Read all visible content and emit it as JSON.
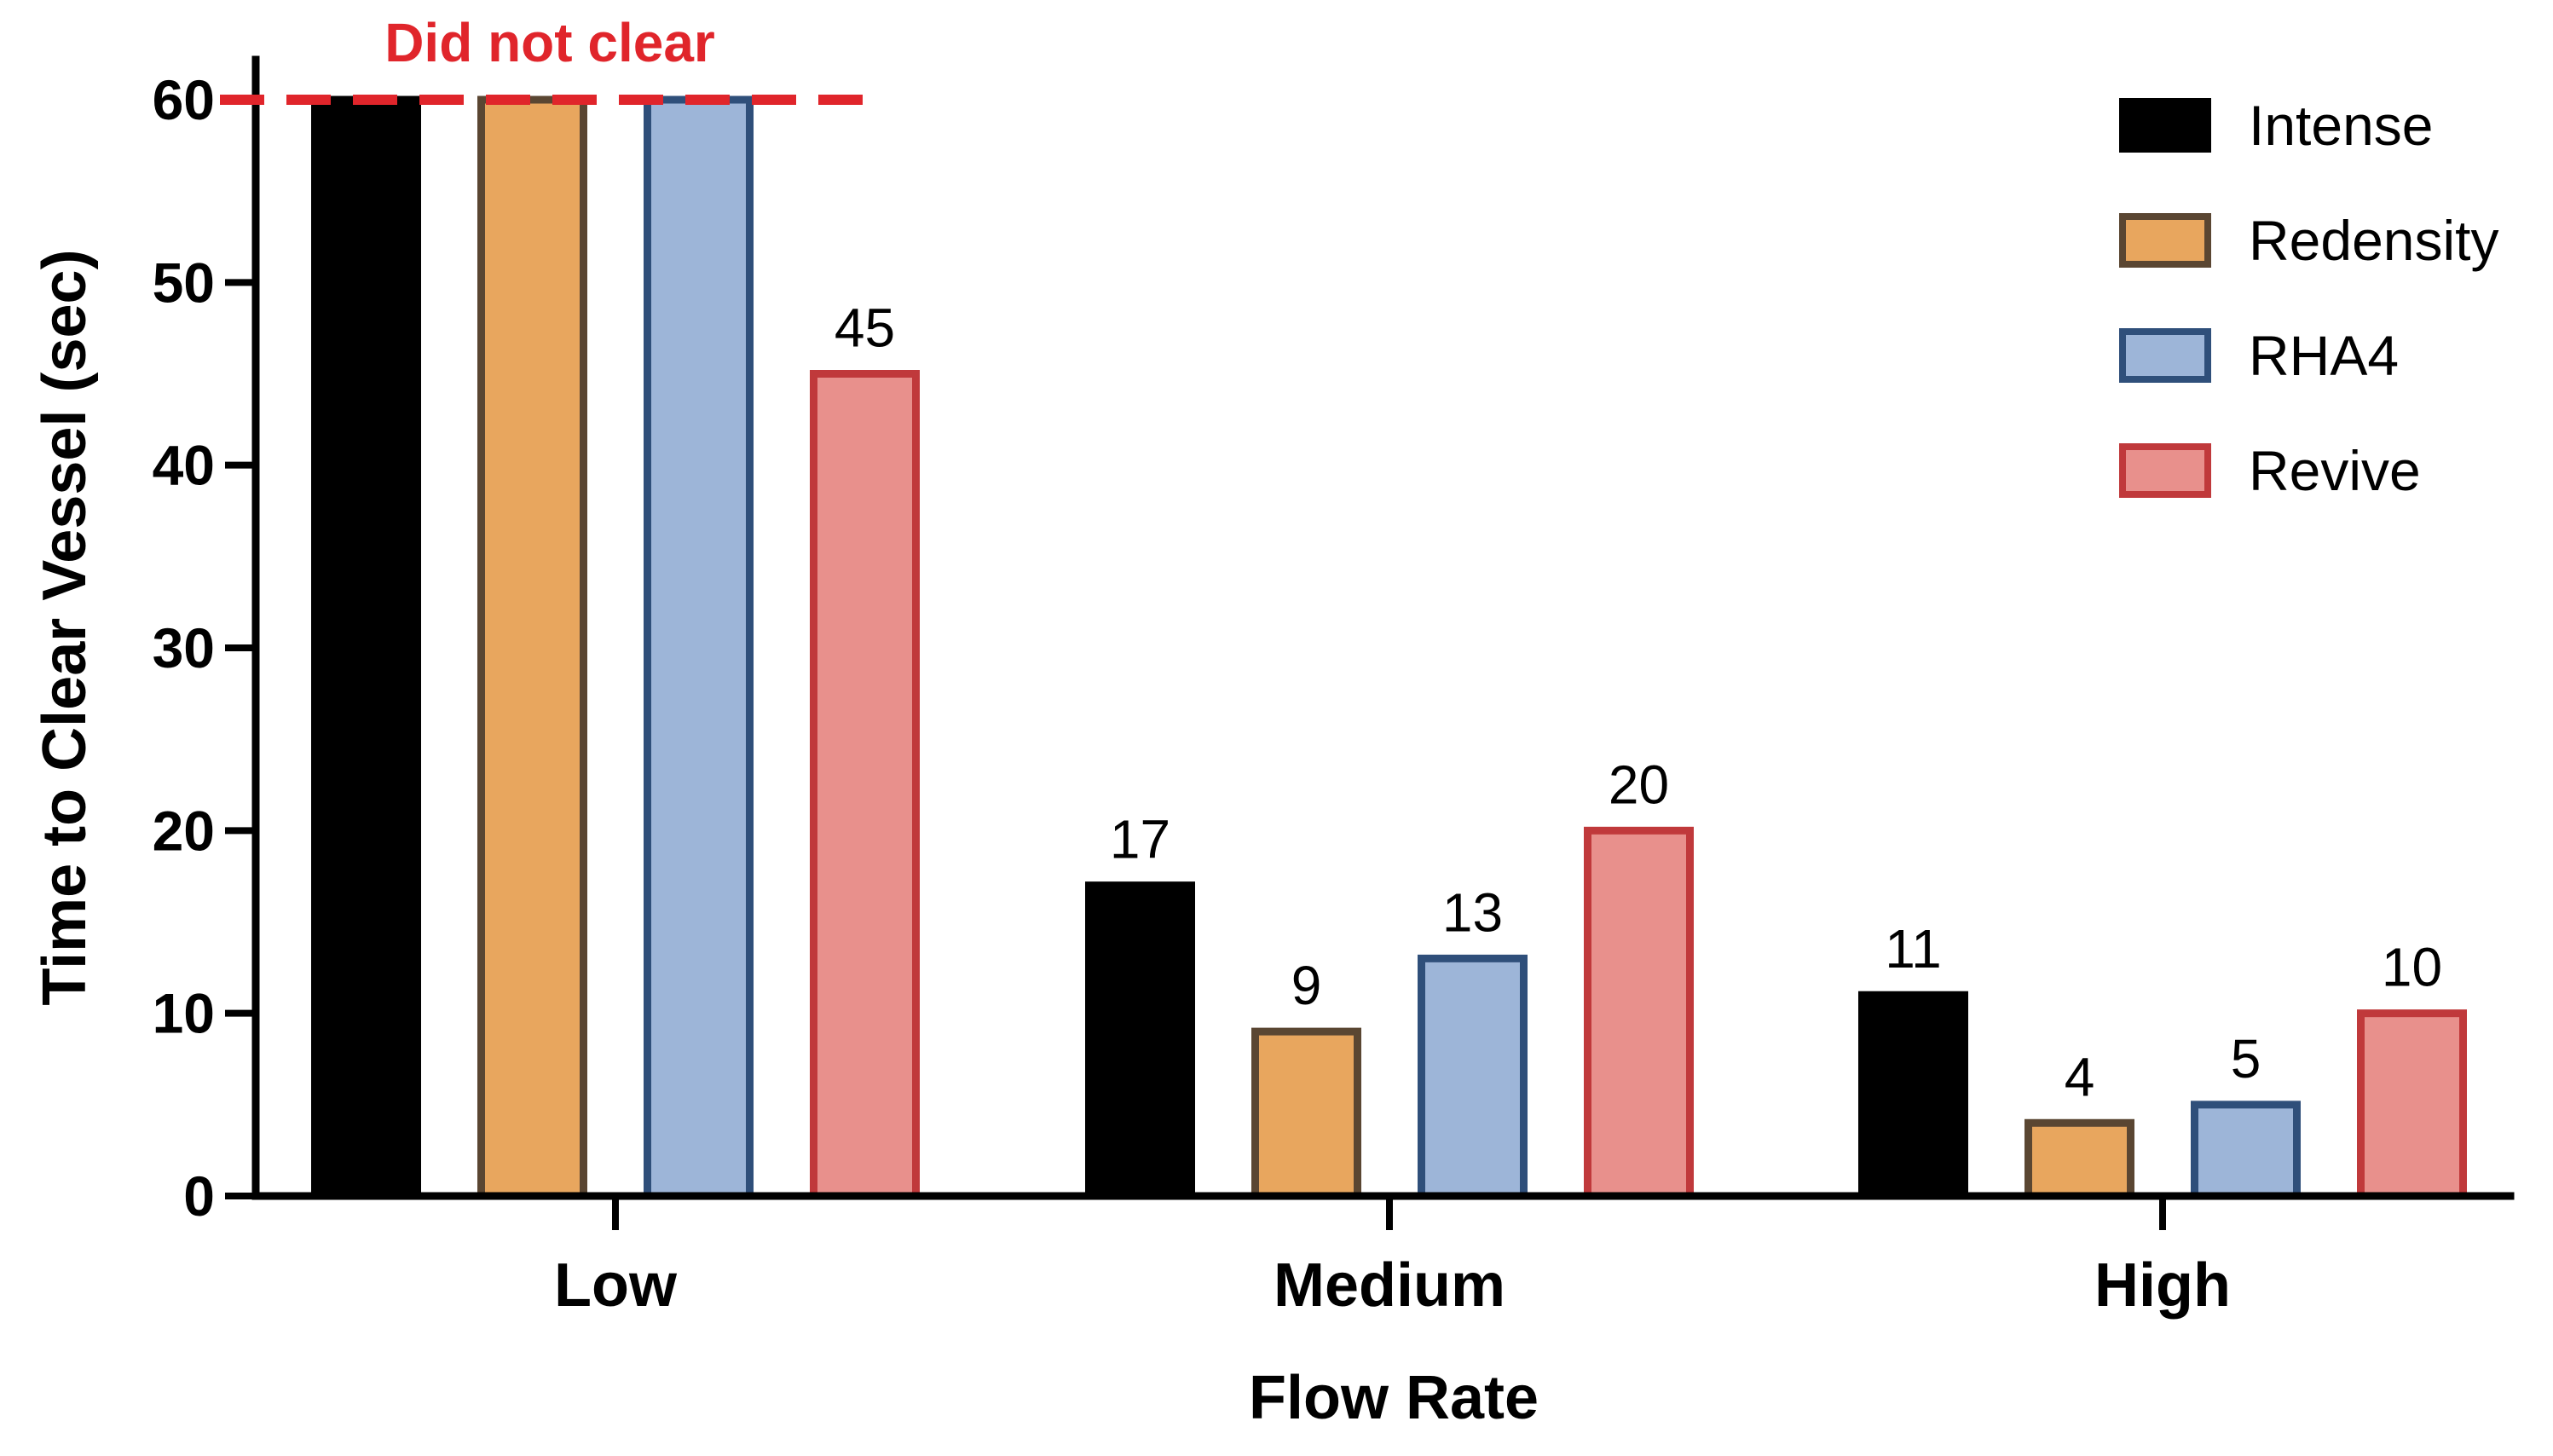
{
  "chart_data": {
    "type": "bar",
    "categories": [
      "Low",
      "Medium",
      "High"
    ],
    "series": [
      {
        "name": "Intense",
        "values": [
          60,
          17,
          11
        ],
        "fill": "#000000",
        "stroke": "#000000"
      },
      {
        "name": "Redensity",
        "values": [
          60,
          9,
          4
        ],
        "fill": "#E8A65E",
        "stroke": "#5A4632"
      },
      {
        "name": "RHA4",
        "values": [
          60,
          13,
          5
        ],
        "fill": "#9DB5D8",
        "stroke": "#2F4F7A"
      },
      {
        "name": "Revive",
        "values": [
          45,
          20,
          10
        ],
        "fill": "#E8908C",
        "stroke": "#C0393B"
      }
    ],
    "data_labels": [
      [
        "",
        "",
        "",
        "45"
      ],
      [
        "17",
        "9",
        "13",
        "20"
      ],
      [
        "11",
        "4",
        "5",
        "10"
      ]
    ],
    "xlabel": "Flow Rate",
    "ylabel": "Time to Clear Vessel (sec)",
    "ylim": [
      0,
      60
    ],
    "yticks": [
      "0",
      "10",
      "20",
      "30",
      "40",
      "50",
      "60"
    ],
    "grid": false,
    "legend_position": "top-right",
    "annotation": {
      "text": "Did not clear",
      "value": 60,
      "color": "#E0252B"
    }
  }
}
